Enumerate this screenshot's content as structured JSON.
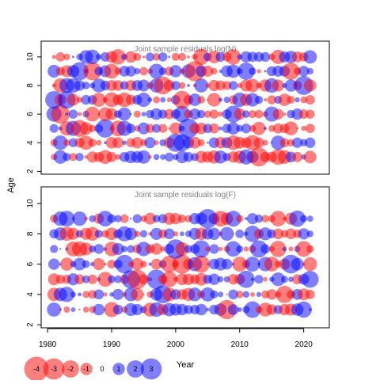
{
  "chart_data": {
    "type": "scatter",
    "encoding": "bubble",
    "xlabel": "Year",
    "ylabel": "Age",
    "colors": {
      "positive": "#0000FF",
      "negative": "#FF0000",
      "frame": "#000000",
      "title": "#7f7f7f"
    },
    "x_ticks": [
      1980,
      1990,
      2000,
      2010,
      2020
    ],
    "xlim": [
      1979,
      2024
    ],
    "panels": [
      {
        "title": "Joint sample residuals log(N)",
        "ages": [
          3,
          4,
          5,
          6,
          7,
          8,
          9,
          10
        ],
        "ylim": [
          1.8,
          11.1
        ],
        "y_ticks": [
          2,
          4,
          6,
          8,
          10
        ],
        "years": [
          1981,
          2021
        ],
        "seed": 11
      },
      {
        "title": "Joint sample residuals log(F)",
        "ages": [
          3,
          4,
          5,
          6,
          7,
          8,
          9
        ],
        "ylim": [
          1.8,
          11.1
        ],
        "y_ticks": [
          2,
          4,
          6,
          8,
          10
        ],
        "years": [
          1981,
          2021
        ],
        "seed": 29
      }
    ],
    "legend": {
      "values": [
        -4,
        -3,
        -2,
        -1,
        0,
        1,
        2,
        3
      ],
      "labels": [
        "-4",
        "-3",
        "-2",
        "-1",
        "0",
        "1",
        "2",
        "3"
      ]
    }
  }
}
